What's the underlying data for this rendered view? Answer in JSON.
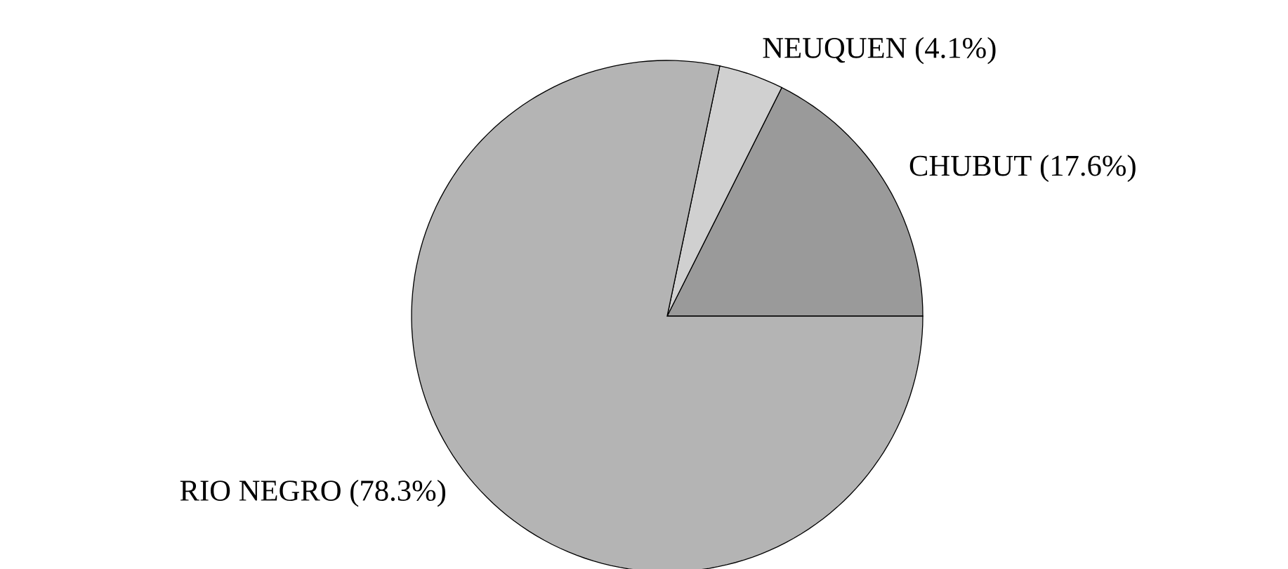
{
  "chart_data": {
    "type": "pie",
    "categories": [
      "CHUBUT (17.6%)",
      "NEUQUEN (4.1%)",
      "RIO NEGRO (78.3%)"
    ],
    "values": [
      17.6,
      4.1,
      78.3
    ],
    "colors": [
      "#9a9a9a",
      "#d0d0d0",
      "#b4b4b4"
    ]
  }
}
